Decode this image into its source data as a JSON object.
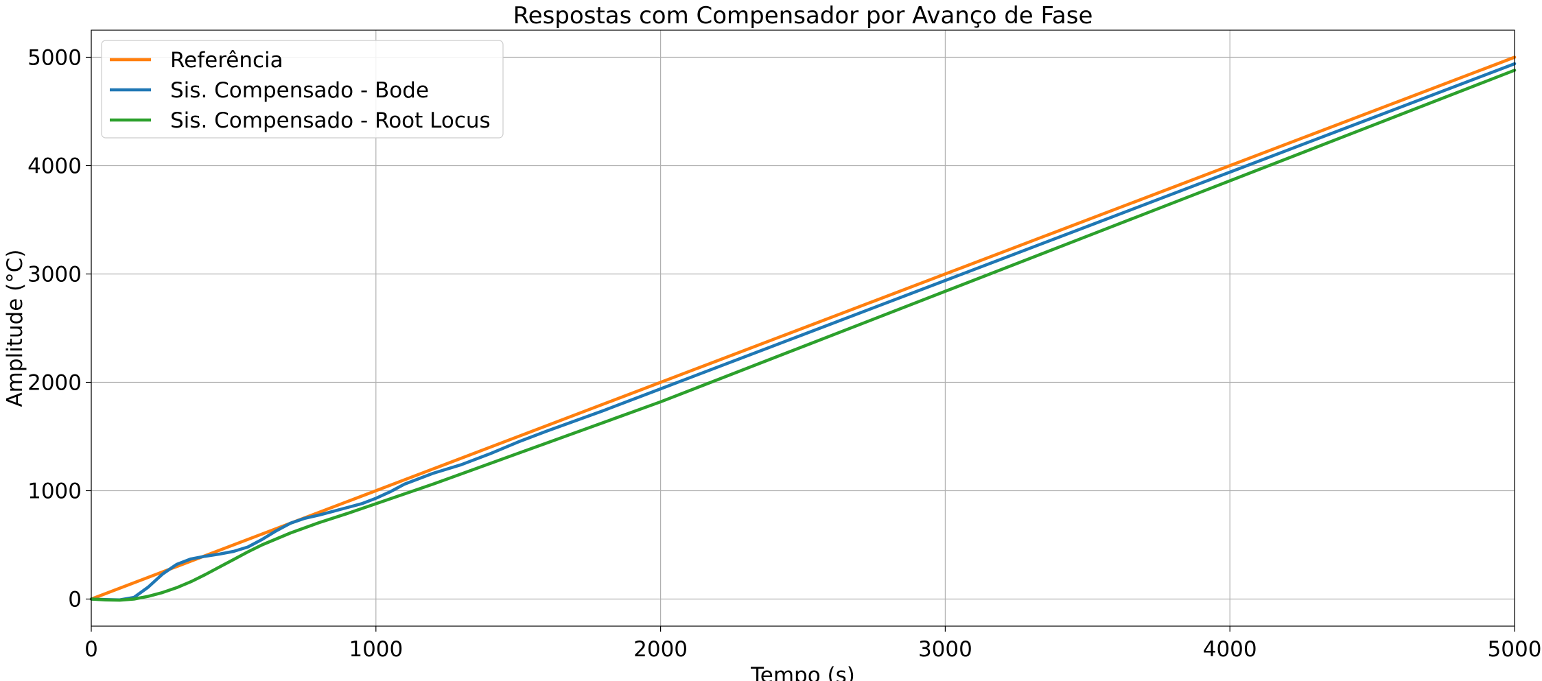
{
  "chart_data": {
    "type": "line",
    "title": "Respostas com Compensador por Avanço de Fase",
    "xlabel": "Tempo (s)",
    "ylabel": "Amplitude (°C)",
    "xlim": [
      0,
      5000
    ],
    "ylim": [
      -250,
      5250
    ],
    "xticks": [
      0,
      1000,
      2000,
      3000,
      4000,
      5000
    ],
    "yticks": [
      0,
      1000,
      2000,
      3000,
      4000,
      5000
    ],
    "xtick_labels": [
      "0",
      "1000",
      "2000",
      "3000",
      "4000",
      "5000"
    ],
    "ytick_labels": [
      "0",
      "1000",
      "2000",
      "3000",
      "4000",
      "5000"
    ],
    "grid": true,
    "legend_position": "upper-left",
    "series": [
      {
        "name": "Referência",
        "color": "#ff7f0e",
        "x": [
          0,
          5000
        ],
        "y": [
          0,
          5000
        ]
      },
      {
        "name": "Sis. Compensado - Bode",
        "color": "#1f77b4",
        "x": [
          0,
          50,
          100,
          150,
          200,
          250,
          300,
          350,
          400,
          450,
          500,
          550,
          600,
          650,
          700,
          750,
          800,
          850,
          900,
          950,
          1000,
          1050,
          1100,
          1200,
          1300,
          1400,
          1500,
          1600,
          1800,
          2000,
          2500,
          3000,
          3500,
          4000,
          4500,
          5000
        ],
        "y": [
          0,
          -5,
          -8,
          15,
          110,
          230,
          320,
          370,
          395,
          415,
          440,
          480,
          550,
          630,
          700,
          745,
          775,
          810,
          845,
          880,
          930,
          990,
          1060,
          1160,
          1240,
          1340,
          1450,
          1550,
          1740,
          1940,
          2440,
          2940,
          3440,
          3940,
          4440,
          4940
        ]
      },
      {
        "name": "Sis. Compensado - Root Locus",
        "color": "#2ca02c",
        "x": [
          0,
          50,
          100,
          150,
          200,
          250,
          300,
          350,
          400,
          450,
          500,
          550,
          600,
          700,
          800,
          900,
          1000,
          1200,
          1400,
          1600,
          1800,
          2000,
          2500,
          3000,
          3500,
          4000,
          4500,
          5000
        ],
        "y": [
          0,
          -8,
          -10,
          0,
          25,
          60,
          105,
          160,
          225,
          295,
          365,
          435,
          500,
          610,
          705,
          790,
          880,
          1060,
          1250,
          1440,
          1630,
          1820,
          2330,
          2840,
          3350,
          3860,
          4370,
          4880
        ]
      }
    ]
  }
}
